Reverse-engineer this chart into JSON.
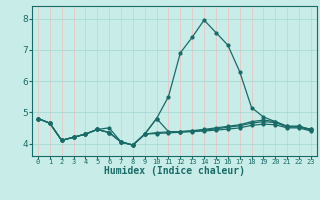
{
  "xlabel": "Humidex (Indice chaleur)",
  "background_color": "#c8ece8",
  "grid_color_v": "#e8c8c8",
  "grid_color_h": "#a8d8d4",
  "line_color": "#1a6b68",
  "xlim": [
    -0.5,
    23.5
  ],
  "ylim": [
    3.6,
    8.4
  ],
  "yticks": [
    4,
    5,
    6,
    7,
    8
  ],
  "xticks": [
    0,
    1,
    2,
    3,
    4,
    5,
    6,
    7,
    8,
    9,
    10,
    11,
    12,
    13,
    14,
    15,
    16,
    17,
    18,
    19,
    20,
    21,
    22,
    23
  ],
  "line1": [
    4.8,
    4.65,
    4.1,
    4.2,
    4.3,
    4.45,
    4.5,
    4.05,
    3.95,
    4.3,
    4.8,
    5.5,
    6.9,
    7.4,
    7.95,
    7.55,
    7.15,
    6.3,
    5.15,
    4.85,
    4.7,
    4.55,
    4.55,
    4.45
  ],
  "line2": [
    4.8,
    4.65,
    4.1,
    4.2,
    4.3,
    4.45,
    4.35,
    4.05,
    3.95,
    4.3,
    4.8,
    4.38,
    4.38,
    4.41,
    4.45,
    4.5,
    4.55,
    4.6,
    4.7,
    4.75,
    4.7,
    4.55,
    4.55,
    4.45
  ],
  "line3": [
    4.8,
    4.65,
    4.1,
    4.2,
    4.3,
    4.45,
    4.35,
    4.05,
    3.95,
    4.3,
    4.35,
    4.37,
    4.38,
    4.4,
    4.43,
    4.47,
    4.52,
    4.57,
    4.65,
    4.7,
    4.67,
    4.53,
    4.53,
    4.43
  ],
  "line4": [
    4.8,
    4.65,
    4.1,
    4.2,
    4.3,
    4.45,
    4.35,
    4.05,
    3.95,
    4.3,
    4.32,
    4.34,
    4.36,
    4.38,
    4.4,
    4.43,
    4.46,
    4.5,
    4.58,
    4.62,
    4.6,
    4.5,
    4.5,
    4.4
  ]
}
